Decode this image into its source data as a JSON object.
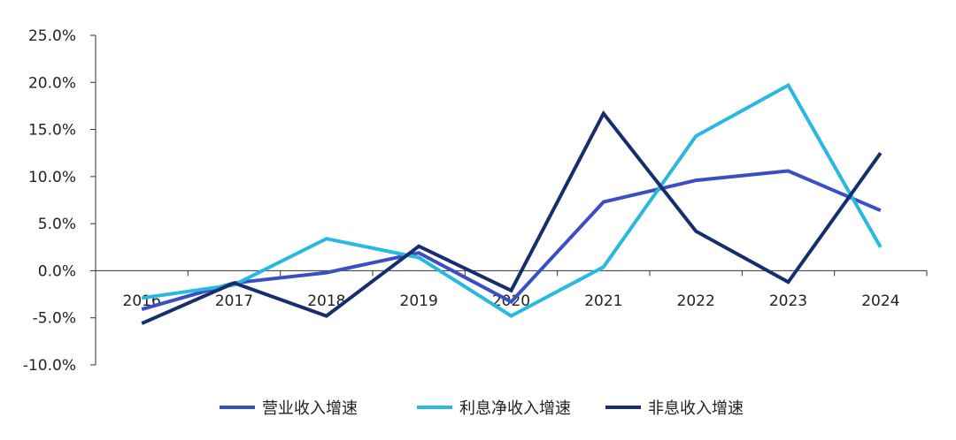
{
  "chart_data": {
    "type": "line",
    "categories": [
      "2016",
      "2017",
      "2018",
      "2019",
      "2020",
      "2021",
      "2022",
      "2023",
      "2024"
    ],
    "y_ticks": [
      "-10.0%",
      "-5.0%",
      "0.0%",
      "5.0%",
      "10.0%",
      "15.0%",
      "20.0%",
      "25.0%"
    ],
    "ylim": [
      -10,
      25
    ],
    "grid": false,
    "legend_position": "bottom",
    "series": [
      {
        "name": "营业收入增速",
        "color": "#3a4fc4",
        "values": [
          -4.1,
          -1.3,
          -0.2,
          1.9,
          -3.3,
          7.3,
          9.6,
          10.6,
          6.4
        ]
      },
      {
        "name": "利息净收入增速",
        "color": "#29b8e0",
        "values": [
          -2.9,
          -1.5,
          3.4,
          1.4,
          -4.8,
          0.4,
          14.3,
          19.7,
          2.5
        ]
      },
      {
        "name": "非息收入增速",
        "color": "#152e6e",
        "values": [
          -5.6,
          -1.3,
          -4.8,
          2.6,
          -2.1,
          16.7,
          4.2,
          -1.2,
          12.5
        ]
      }
    ]
  }
}
